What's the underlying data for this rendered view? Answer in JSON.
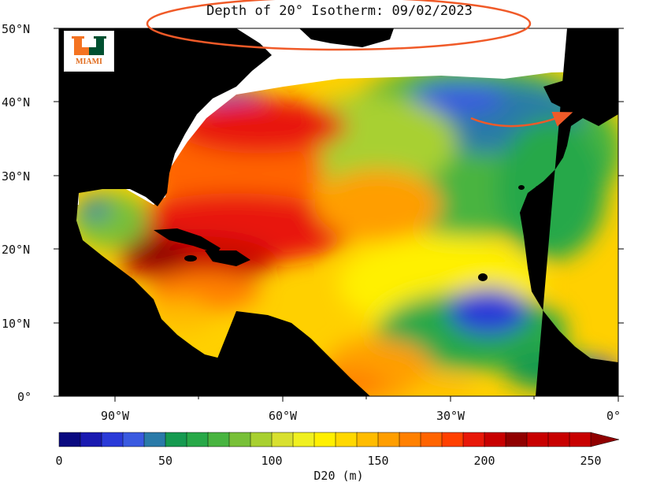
{
  "title": "Depth of 20° Isotherm: 09/02/2023",
  "logo": {
    "text": "MIAMI",
    "primary_color": "#005030",
    "accent_color": "#f47321"
  },
  "map": {
    "lon_range": [
      -100,
      0
    ],
    "lat_range": [
      0,
      50
    ],
    "land_color": "#000000",
    "lat_ticks": [
      {
        "value": 50,
        "label": "50°N"
      },
      {
        "value": 40,
        "label": "40°N"
      },
      {
        "value": 30,
        "label": "30°N"
      },
      {
        "value": 20,
        "label": "20°N"
      },
      {
        "value": 10,
        "label": "10°N"
      },
      {
        "value": 0,
        "label": "0°"
      }
    ],
    "lon_ticks": [
      {
        "value": -90,
        "label": "90°W"
      },
      {
        "value": -60,
        "label": "60°W"
      },
      {
        "value": -30,
        "label": "30°W"
      },
      {
        "value": 0,
        "label": "0°"
      }
    ]
  },
  "colorbar": {
    "label": "D20 (m)",
    "min": 0,
    "max": 250,
    "step": 10,
    "tick_labels": [
      "0",
      "50",
      "100",
      "150",
      "200",
      "250"
    ],
    "colors": [
      "#0a0a80",
      "#1a1ab0",
      "#2a3ad8",
      "#3a5ae0",
      "#2a7aa8",
      "#169a50",
      "#28a848",
      "#48b440",
      "#78c038",
      "#a8d030",
      "#d8e030",
      "#f0f020",
      "#fff000",
      "#ffd800",
      "#ffbc00",
      "#ff9e00",
      "#ff8000",
      "#ff6400",
      "#ff4000",
      "#e81808",
      "#c80000",
      "#900000"
    ]
  },
  "annotations": [
    {
      "type": "ellipse",
      "color": "#f05a28",
      "target": "title"
    },
    {
      "type": "arrow",
      "color": "#f05a28",
      "target": "iberian-coast"
    }
  ]
}
